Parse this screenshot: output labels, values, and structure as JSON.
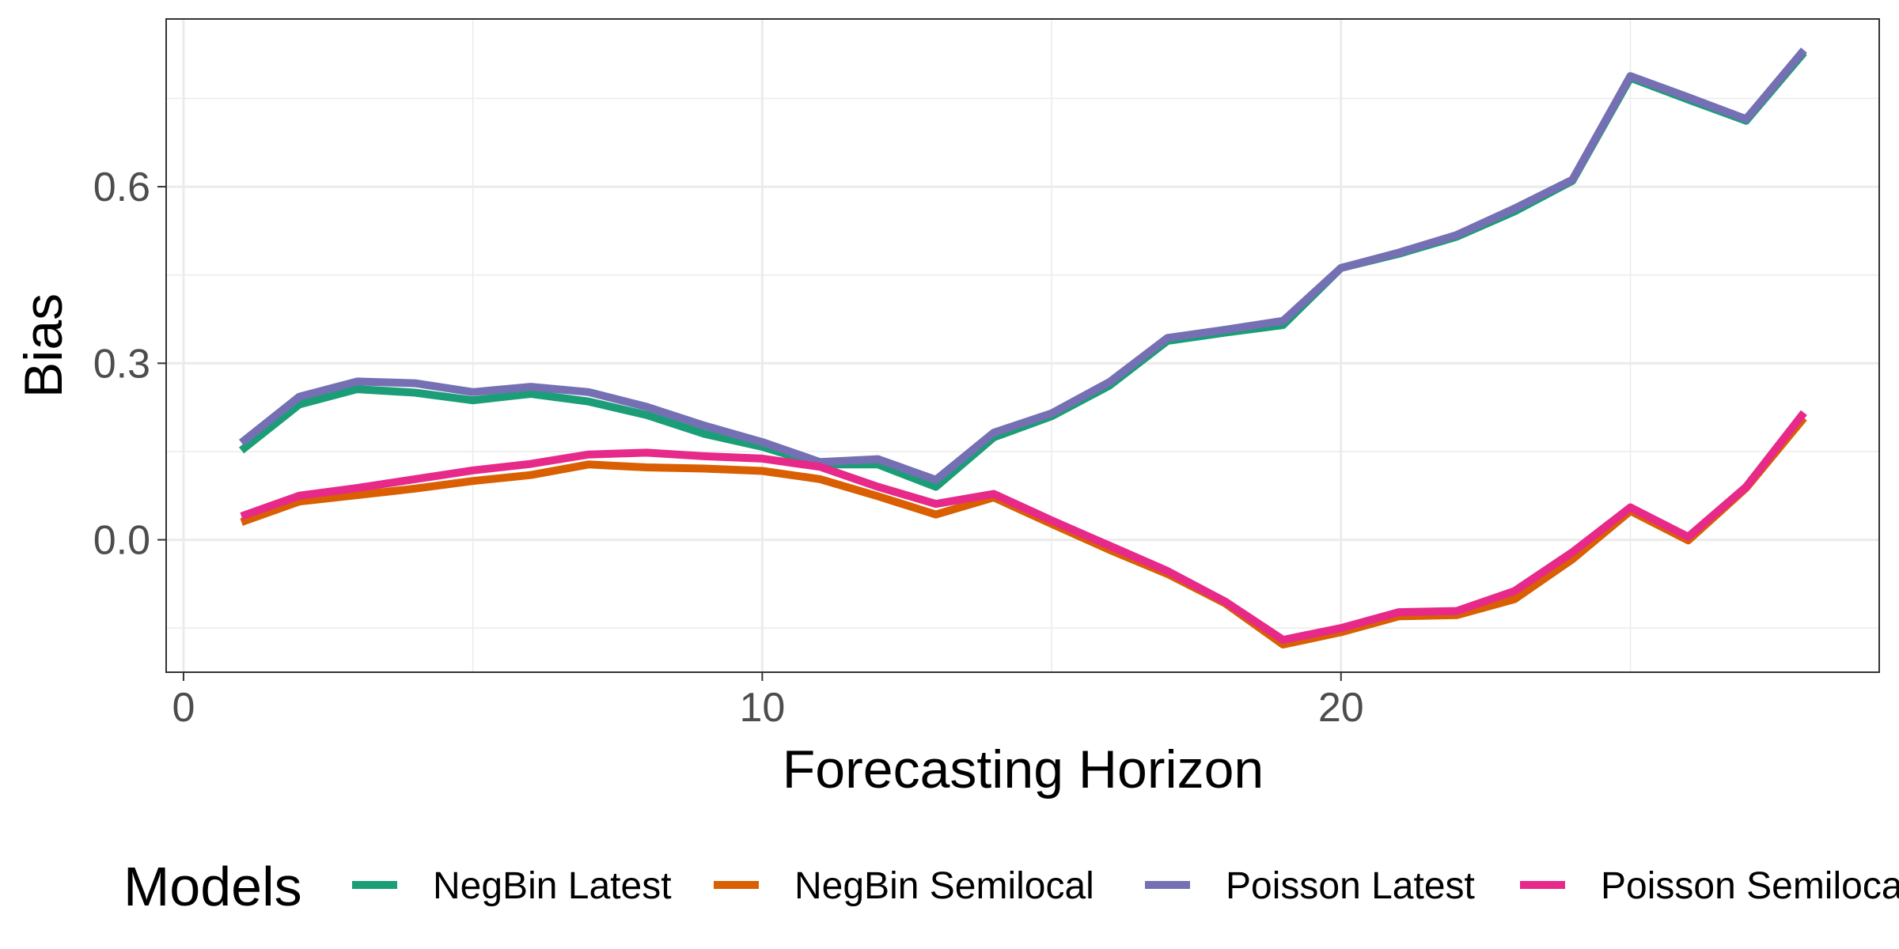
{
  "chart_data": {
    "type": "line",
    "xlabel": "Forecasting Horizon",
    "ylabel": "Bias",
    "xlim": [
      -0.3,
      29.3
    ],
    "ylim": [
      -0.225,
      0.885
    ],
    "x_ticks": [
      0,
      10,
      20
    ],
    "x_tick_labels": [
      "0",
      "10",
      "20"
    ],
    "y_ticks": [
      0.0,
      0.3,
      0.6
    ],
    "y_tick_labels": [
      "0.0",
      "0.3",
      "0.6"
    ],
    "grid": true,
    "legend": {
      "title": "Models",
      "position": "bottom"
    },
    "x": [
      1,
      2,
      3,
      4,
      5,
      6,
      7,
      8,
      9,
      10,
      11,
      12,
      13,
      14,
      15,
      16,
      17,
      18,
      19,
      20,
      21,
      22,
      23,
      24,
      25,
      26,
      27,
      28
    ],
    "series": [
      {
        "name": "NegBin Latest",
        "color": "#1b9e77",
        "values": [
          0.152,
          0.23,
          0.256,
          0.25,
          0.237,
          0.248,
          0.235,
          0.212,
          0.18,
          0.158,
          0.128,
          0.128,
          0.09,
          0.174,
          0.21,
          0.262,
          0.338,
          0.352,
          0.365,
          0.462,
          0.486,
          0.515,
          0.558,
          0.61,
          0.785,
          0.748,
          0.712,
          0.828
        ]
      },
      {
        "name": "NegBin Semilocal",
        "color": "#d95f02",
        "values": [
          0.03,
          0.065,
          0.076,
          0.087,
          0.1,
          0.11,
          0.128,
          0.123,
          0.121,
          0.117,
          0.103,
          0.074,
          0.043,
          0.072,
          0.027,
          -0.017,
          -0.058,
          -0.108,
          -0.178,
          -0.157,
          -0.13,
          -0.128,
          -0.101,
          -0.033,
          0.049,
          -0.001,
          0.088,
          0.207
        ]
      },
      {
        "name": "Poisson Latest",
        "color": "#7570b3",
        "values": [
          0.165,
          0.243,
          0.269,
          0.266,
          0.251,
          0.26,
          0.251,
          0.226,
          0.194,
          0.166,
          0.132,
          0.137,
          0.102,
          0.182,
          0.215,
          0.268,
          0.343,
          0.357,
          0.372,
          0.462,
          0.488,
          0.518,
          0.563,
          0.612,
          0.788,
          0.752,
          0.715,
          0.832
        ]
      },
      {
        "name": "Poisson Semilocal",
        "color": "#e7298a",
        "values": [
          0.04,
          0.075,
          0.088,
          0.103,
          0.118,
          0.129,
          0.145,
          0.148,
          0.142,
          0.138,
          0.124,
          0.09,
          0.061,
          0.078,
          0.033,
          -0.01,
          -0.053,
          -0.105,
          -0.17,
          -0.15,
          -0.123,
          -0.121,
          -0.087,
          -0.021,
          0.055,
          0.005,
          0.09,
          0.216
        ]
      }
    ]
  }
}
